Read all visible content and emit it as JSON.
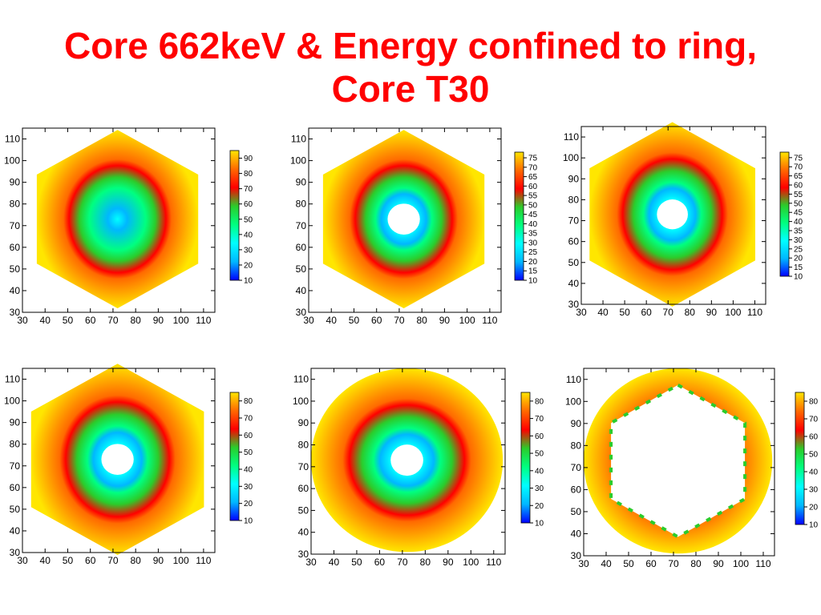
{
  "title": {
    "line1": "Core 662keV & Energy confined to ring,",
    "line2": "Core T30"
  },
  "colors": {
    "title": "#ff0000",
    "scale": [
      "#0000ff",
      "#00b7ff",
      "#00ffff",
      "#00ff80",
      "#2bcc2b",
      "#ff0000",
      "#ff6a00",
      "#ffe600"
    ]
  },
  "chart_data": [
    {
      "type": "heatmap",
      "shape": "hexagon",
      "hole": false,
      "x_ticks": [
        30,
        40,
        50,
        60,
        70,
        80,
        90,
        100,
        110
      ],
      "y_ticks": [
        30,
        40,
        50,
        60,
        70,
        80,
        90,
        100,
        110
      ],
      "xlim": [
        30,
        115
      ],
      "ylim": [
        30,
        115
      ],
      "colorbar": {
        "range": [
          10,
          95
        ],
        "labels": [
          "90",
          "80",
          "70",
          "60",
          "50",
          "40",
          "30",
          "20",
          "10"
        ]
      }
    },
    {
      "type": "heatmap",
      "shape": "hexagon",
      "hole": true,
      "x_ticks": [
        30,
        40,
        50,
        60,
        70,
        80,
        90,
        100,
        110
      ],
      "y_ticks": [
        30,
        40,
        50,
        60,
        70,
        80,
        90,
        100,
        110
      ],
      "xlim": [
        30,
        115
      ],
      "ylim": [
        30,
        115
      ],
      "colorbar": {
        "range": [
          10,
          78
        ],
        "labels": [
          "75",
          "70",
          "65",
          "60",
          "55",
          "50",
          "45",
          "40",
          "35",
          "30",
          "25",
          "20",
          "15",
          "10"
        ]
      }
    },
    {
      "type": "heatmap",
      "shape": "hexagon-rounded",
      "hole": true,
      "x_ticks": [
        30,
        40,
        50,
        60,
        70,
        80,
        90,
        100,
        110
      ],
      "y_ticks": [
        30,
        40,
        50,
        60,
        70,
        80,
        90,
        100,
        110
      ],
      "xlim": [
        30,
        115
      ],
      "ylim": [
        30,
        115
      ],
      "colorbar": {
        "range": [
          10,
          78
        ],
        "labels": [
          "75",
          "70",
          "65",
          "60",
          "55",
          "50",
          "45",
          "40",
          "35",
          "30",
          "25",
          "20",
          "15",
          "10"
        ]
      }
    },
    {
      "type": "heatmap",
      "shape": "hexagon-rounded",
      "hole": true,
      "x_ticks": [
        30,
        40,
        50,
        60,
        70,
        80,
        90,
        100,
        110
      ],
      "y_ticks": [
        30,
        40,
        50,
        60,
        70,
        80,
        90,
        100,
        110
      ],
      "xlim": [
        30,
        115
      ],
      "ylim": [
        30,
        115
      ],
      "colorbar": {
        "range": [
          10,
          85
        ],
        "labels": [
          "80",
          "70",
          "60",
          "50",
          "40",
          "30",
          "20",
          "10"
        ]
      }
    },
    {
      "type": "heatmap",
      "shape": "circle",
      "hole": true,
      "x_ticks": [
        30,
        40,
        50,
        60,
        70,
        80,
        90,
        100,
        110
      ],
      "y_ticks": [
        30,
        40,
        50,
        60,
        70,
        80,
        90,
        100,
        110
      ],
      "xlim": [
        30,
        115
      ],
      "ylim": [
        30,
        115
      ],
      "colorbar": {
        "range": [
          10,
          85
        ],
        "labels": [
          "80",
          "70",
          "60",
          "50",
          "40",
          "30",
          "20",
          "10"
        ]
      }
    },
    {
      "type": "heatmap",
      "shape": "ring",
      "hole": true,
      "x_ticks": [
        30,
        40,
        50,
        60,
        70,
        80,
        90,
        100,
        110
      ],
      "y_ticks": [
        30,
        40,
        50,
        60,
        70,
        80,
        90,
        100,
        110
      ],
      "xlim": [
        30,
        115
      ],
      "ylim": [
        30,
        115
      ],
      "colorbar": {
        "range": [
          10,
          85
        ],
        "labels": [
          "80",
          "70",
          "60",
          "50",
          "40",
          "30",
          "20",
          "10"
        ]
      }
    }
  ]
}
